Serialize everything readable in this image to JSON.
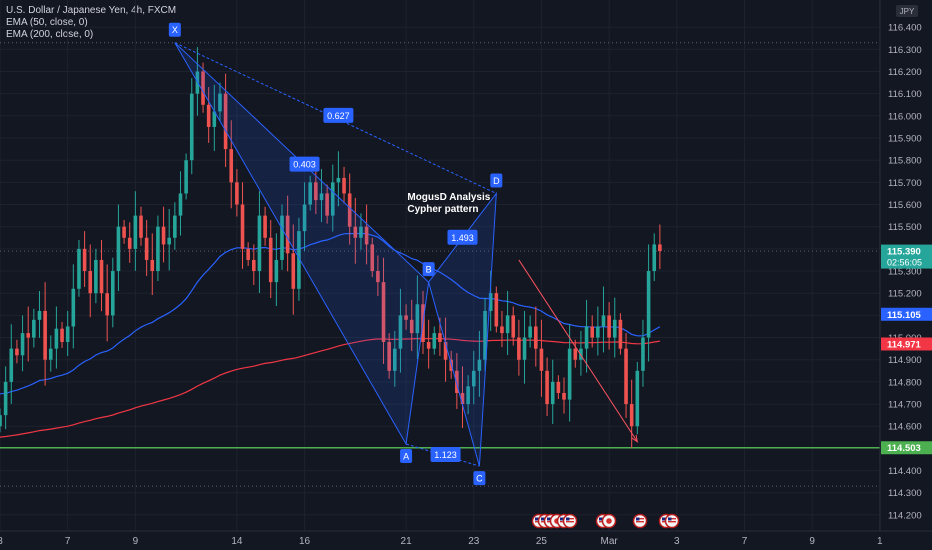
{
  "chart_data": {
    "type": "candlestick",
    "title": "U.S. Dollar / Japanese Yen, 4h, FXCM",
    "indicators": [
      "EMA (50, close, 0)",
      "EMA (200, close, 0)"
    ],
    "currency": "JPY",
    "ylim": [
      114.15,
      116.5
    ],
    "yticks": [
      "116.400",
      "116.300",
      "116.200",
      "116.100",
      "116.000",
      "115.900",
      "115.800",
      "115.700",
      "115.600",
      "115.500",
      "115.400",
      "115.300",
      "115.200",
      "115.100",
      "115.000",
      "114.900",
      "114.800",
      "114.700",
      "114.600",
      "114.500",
      "114.400",
      "114.300",
      "114.200"
    ],
    "xticks": [
      {
        "label": "3",
        "idx": 0
      },
      {
        "label": "7",
        "idx": 12
      },
      {
        "label": "9",
        "idx": 24
      },
      {
        "label": "14",
        "idx": 42
      },
      {
        "label": "16",
        "idx": 54
      },
      {
        "label": "21",
        "idx": 72
      },
      {
        "label": "23",
        "idx": 84
      },
      {
        "label": "25",
        "idx": 96
      },
      {
        "label": "Mar",
        "idx": 108
      },
      {
        "label": "3",
        "idx": 120
      },
      {
        "label": "7",
        "idx": 132
      },
      {
        "label": "9",
        "idx": 144
      },
      {
        "label": "1",
        "idx": 156
      }
    ],
    "price_labels": [
      {
        "value": 115.39,
        "text": "115.390",
        "sub": "02:56:05",
        "color": "#26a69a"
      },
      {
        "value": 115.105,
        "text": "115.105",
        "color": "#2962ff"
      },
      {
        "value": 114.971,
        "text": "114.971",
        "color": "#f23645"
      },
      {
        "value": 114.503,
        "text": "114.503",
        "color": "#4caf50"
      }
    ],
    "support_level": 114.503,
    "dotted_levels": [
      116.33,
      115.39,
      114.33
    ],
    "close": [
      114.65,
      114.8,
      114.95,
      114.92,
      115.02,
      115.0,
      115.08,
      115.12,
      114.9,
      114.95,
      115.04,
      114.98,
      115.05,
      115.22,
      115.4,
      115.3,
      115.2,
      115.35,
      115.2,
      115.1,
      115.3,
      115.5,
      115.45,
      115.4,
      115.55,
      115.45,
      115.35,
      115.3,
      115.5,
      115.42,
      115.45,
      115.55,
      115.65,
      115.8,
      116.1,
      116.2,
      116.05,
      115.95,
      116.02,
      116.1,
      115.85,
      115.7,
      115.6,
      115.4,
      115.35,
      115.3,
      115.55,
      115.45,
      115.25,
      115.35,
      115.55,
      115.38,
      115.22,
      115.48,
      115.6,
      115.7,
      115.62,
      115.65,
      115.55,
      115.7,
      115.72,
      115.65,
      115.5,
      115.45,
      115.5,
      115.42,
      115.3,
      115.25,
      114.98,
      114.85,
      114.95,
      115.1,
      115.08,
      115.02,
      115.15,
      114.98,
      114.95,
      115.02,
      114.98,
      114.9,
      114.85,
      114.75,
      114.7,
      114.78,
      114.85,
      114.9,
      115.12,
      115.2,
      115.05,
      115.02,
      115.1,
      115.0,
      114.9,
      115.0,
      115.05,
      114.95,
      114.85,
      114.7,
      114.8,
      114.75,
      114.72,
      114.95,
      114.9,
      114.95,
      115.05,
      115.0,
      115.05,
      115.1,
      115.0,
      115.08,
      114.95,
      114.7,
      114.6,
      114.85,
      115.0,
      115.3,
      115.42,
      115.39
    ],
    "pattern": {
      "name": "Cypher pattern",
      "annotation": [
        "MogusD Analysis",
        "Cypher pattern"
      ],
      "points": [
        {
          "label": "X",
          "idx": 31,
          "price": 116.33
        },
        {
          "label": "A",
          "idx": 72,
          "price": 114.52
        },
        {
          "label": "B",
          "idx": 76,
          "price": 115.25
        },
        {
          "label": "C",
          "idx": 85,
          "price": 114.42
        },
        {
          "label": "D",
          "idx": 88,
          "price": 115.65
        }
      ],
      "ratios": [
        {
          "text": "0.403",
          "at_idx": 54,
          "at_price": 115.78
        },
        {
          "text": "0.627",
          "at_idx": 60,
          "at_price": 116.0
        },
        {
          "text": "1.493",
          "at_idx": 82,
          "at_price": 115.45
        },
        {
          "text": "1.123",
          "at_idx": 79,
          "at_price": 114.47
        }
      ],
      "projection": {
        "from_idx": 92,
        "from_price": 115.35,
        "to_idx": 113,
        "to_price": 114.53
      }
    },
    "event_markers": [
      "us-flag-icon",
      "us-flag-icon",
      "us-flag-icon",
      "jp-flag-icon",
      "us-flag-icon",
      "us-flag-icon",
      "us-flag-icon",
      "jp-flag-icon",
      "us-flag-icon",
      "us-flag-icon",
      "us-flag-icon"
    ],
    "colors": {
      "up": "#26a69a",
      "down": "#ef5350",
      "ema50": "#2962ff",
      "ema200": "#f23645",
      "support": "#4caf50",
      "pattern": "#2962ff",
      "projection": "#f7525f"
    }
  }
}
